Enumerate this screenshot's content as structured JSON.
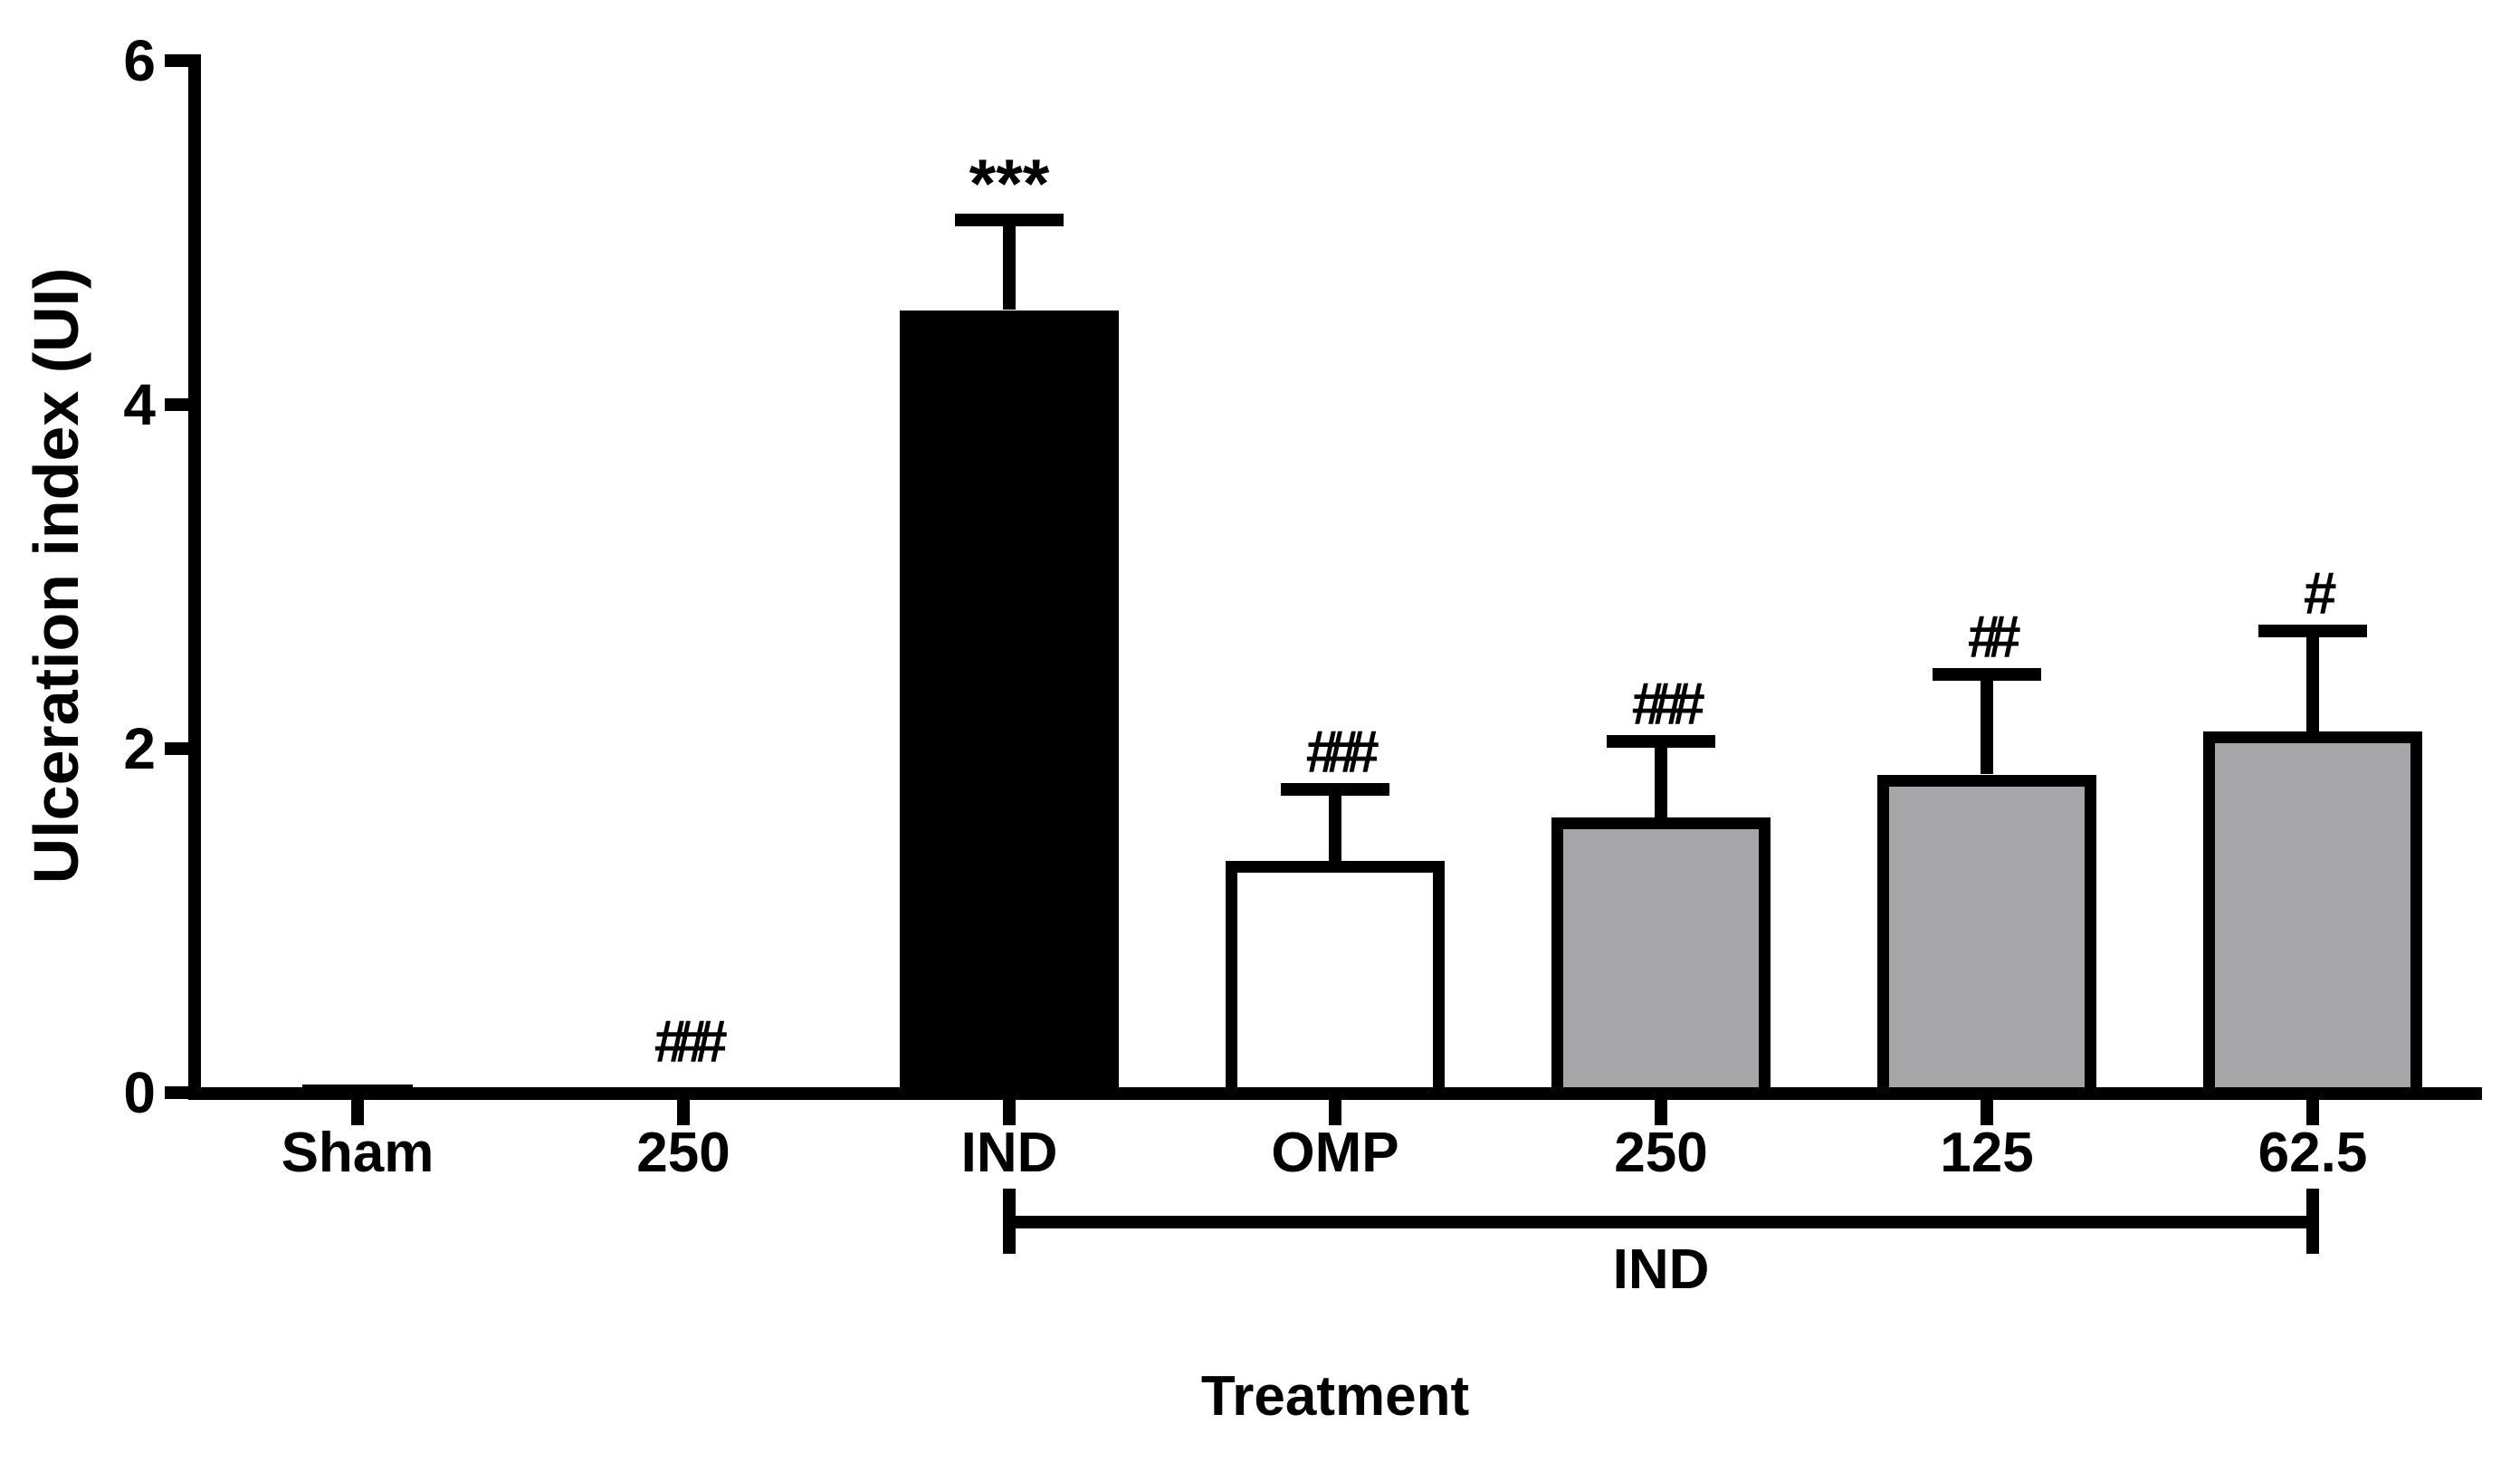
{
  "figure": {
    "background_color": "#ffffff",
    "ink_color": "#000000"
  },
  "chart_data": {
    "type": "bar",
    "title": "",
    "ylabel": "Ulceration index (UI)",
    "xlabel": "Treatment",
    "ylim": [
      0,
      6
    ],
    "yticks": [
      0,
      2,
      4,
      6
    ],
    "grid": false,
    "legend": "none",
    "categories": [
      "Sham",
      "250",
      "IND",
      "OMP",
      "250",
      "125",
      "62.5"
    ],
    "series": [
      {
        "name": "Ulceration index (UI)",
        "values": [
          0.05,
          0,
          4.55,
          1.35,
          1.6,
          1.85,
          2.1
        ],
        "errors_sem": [
          0,
          0,
          0.56,
          0.45,
          0.48,
          0.62,
          0.62
        ],
        "annotations": [
          "",
          "###",
          "***",
          "###",
          "###",
          "##",
          "#"
        ],
        "bar_fills": [
          "#000000",
          "none",
          "#000000",
          "#ffffff",
          "#a6a6a8",
          "#a6a6a8",
          "#a6a6a8"
        ],
        "bar_border_color": "#000000"
      }
    ],
    "group_bracket": {
      "label": "IND",
      "from_index": 2,
      "to_index": 6
    },
    "colors": {
      "black_bar": "#000000",
      "white_bar": "#ffffff",
      "gray_bar": "#a6a6a8",
      "axis": "#000000"
    }
  }
}
